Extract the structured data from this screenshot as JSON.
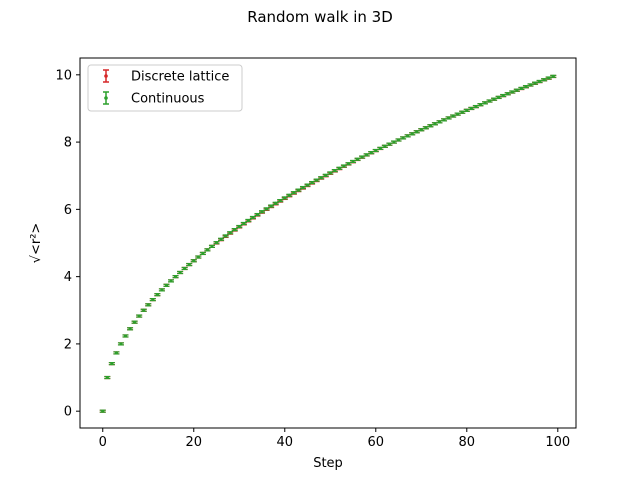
{
  "chart_data": {
    "type": "scatter",
    "title": "Random walk in 3D",
    "xlabel": "Step",
    "ylabel": "√<r²>",
    "xlim": [
      -5,
      104
    ],
    "ylim": [
      -0.5,
      10.5
    ],
    "xticks": [
      0,
      20,
      40,
      60,
      80,
      100
    ],
    "yticks": [
      0,
      2,
      4,
      6,
      8,
      10
    ],
    "grid": false,
    "legend_position": "top-left",
    "x": [
      0,
      1,
      2,
      3,
      4,
      5,
      6,
      7,
      8,
      9,
      10,
      11,
      12,
      13,
      14,
      15,
      16,
      17,
      18,
      19,
      20,
      21,
      22,
      23,
      24,
      25,
      26,
      27,
      28,
      29,
      30,
      31,
      32,
      33,
      34,
      35,
      36,
      37,
      38,
      39,
      40,
      41,
      42,
      43,
      44,
      45,
      46,
      47,
      48,
      49,
      50,
      51,
      52,
      53,
      54,
      55,
      56,
      57,
      58,
      59,
      60,
      61,
      62,
      63,
      64,
      65,
      66,
      67,
      68,
      69,
      70,
      71,
      72,
      73,
      74,
      75,
      76,
      77,
      78,
      79,
      80,
      81,
      82,
      83,
      84,
      85,
      86,
      87,
      88,
      89,
      90,
      91,
      92,
      93,
      94,
      95,
      96,
      97,
      98,
      99
    ],
    "series": [
      {
        "name": "Discrete lattice",
        "color": "#d62728",
        "error": 0.03,
        "values": [
          0,
          1,
          1.414,
          1.732,
          2,
          2.236,
          2.449,
          2.646,
          2.828,
          3,
          3.162,
          3.317,
          3.464,
          3.606,
          3.742,
          3.873,
          4,
          4.123,
          4.243,
          4.359,
          4.472,
          4.583,
          4.69,
          4.796,
          4.899,
          5,
          5.099,
          5.196,
          5.292,
          5.385,
          5.477,
          5.568,
          5.657,
          5.745,
          5.831,
          5.916,
          6,
          6.083,
          6.164,
          6.245,
          6.325,
          6.403,
          6.481,
          6.557,
          6.633,
          6.708,
          6.782,
          6.856,
          6.928,
          7,
          7.071,
          7.141,
          7.211,
          7.28,
          7.348,
          7.416,
          7.483,
          7.55,
          7.616,
          7.681,
          7.746,
          7.81,
          7.874,
          7.937,
          8,
          8.062,
          8.124,
          8.185,
          8.246,
          8.307,
          8.367,
          8.426,
          8.485,
          8.544,
          8.602,
          8.66,
          8.718,
          8.775,
          8.832,
          8.888,
          8.944,
          9,
          9.055,
          9.11,
          9.165,
          9.22,
          9.274,
          9.327,
          9.381,
          9.434,
          9.487,
          9.539,
          9.592,
          9.644,
          9.695,
          9.747,
          9.798,
          9.849,
          9.899,
          9.95
        ]
      },
      {
        "name": "Continuous",
        "color": "#2ca02c",
        "error": 0.03,
        "values": [
          0,
          1,
          1.414,
          1.732,
          2,
          2.236,
          2.449,
          2.646,
          2.828,
          3,
          3.162,
          3.317,
          3.464,
          3.606,
          3.742,
          3.873,
          4,
          4.123,
          4.243,
          4.359,
          4.472,
          4.583,
          4.69,
          4.796,
          4.899,
          5.01,
          5.11,
          5.21,
          5.305,
          5.398,
          5.49,
          5.58,
          5.67,
          5.758,
          5.845,
          5.93,
          6.015,
          6.098,
          6.18,
          6.26,
          6.34,
          6.418,
          6.496,
          6.572,
          6.648,
          6.722,
          6.796,
          6.869,
          6.941,
          7.012,
          7.083,
          7.152,
          7.221,
          7.289,
          7.357,
          7.424,
          7.49,
          7.556,
          7.621,
          7.686,
          7.75,
          7.813,
          7.876,
          7.939,
          8.001,
          8.063,
          8.124,
          8.185,
          8.246,
          8.307,
          8.367,
          8.426,
          8.485,
          8.544,
          8.602,
          8.66,
          8.718,
          8.775,
          8.832,
          8.888,
          8.944,
          9,
          9.056,
          9.112,
          9.167,
          9.222,
          9.276,
          9.33,
          9.384,
          9.437,
          9.49,
          9.543,
          9.596,
          9.648,
          9.7,
          9.752,
          9.803,
          9.854,
          9.905,
          9.955
        ]
      }
    ]
  }
}
